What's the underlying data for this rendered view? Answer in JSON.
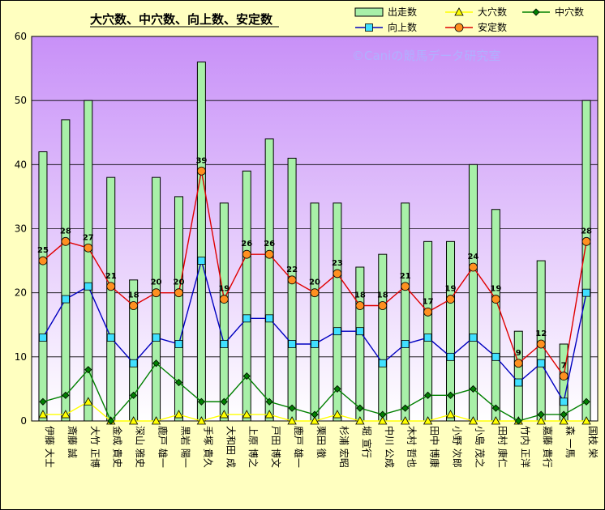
{
  "chart_data": {
    "type": "bar",
    "title": "大穴数、中穴数、向上数、安定数",
    "watermark": "©Caniの競馬データ研究室",
    "ylim": [
      0,
      60
    ],
    "yticks": [
      0,
      10,
      20,
      30,
      40,
      50,
      60
    ],
    "grid": true,
    "legend_position": "top-right",
    "categories": [
      "伊藤 大士",
      "斎藤 誠",
      "大竹 正博",
      "金成 貴史",
      "深山 雅史",
      "鹿戸 雄一",
      "黒岩 陽一",
      "手塚 貴久",
      "大和田 成",
      "上原 博之",
      "戸田 博文",
      "鹿戸 雄一",
      "栗田 徹",
      "杉浦 宏昭",
      "堀 宣行",
      "中川 公成",
      "木村 哲也",
      "田中 博康",
      "小野 次郎",
      "小島 茂之",
      "田村 康仁",
      "竹内 正洋",
      "嘉藤 貴行",
      "森 一馬",
      "国枝 栄"
    ],
    "series": [
      {
        "name": "出走数",
        "kind": "bar",
        "color": "#a8f0a8",
        "values": [
          42,
          47,
          50,
          38,
          22,
          38,
          35,
          56,
          34,
          39,
          44,
          41,
          34,
          34,
          24,
          26,
          34,
          28,
          28,
          40,
          33,
          14,
          25,
          12,
          50
        ]
      },
      {
        "name": "大穴数",
        "kind": "line",
        "color": "#ffff00",
        "values": [
          1,
          1,
          3,
          0,
          0,
          0,
          1,
          0,
          1,
          1,
          1,
          0,
          0,
          1,
          0,
          0,
          0,
          0,
          1,
          0,
          0,
          0,
          0,
          0,
          0
        ]
      },
      {
        "name": "中穴数",
        "kind": "line",
        "color": "#008000",
        "values": [
          3,
          4,
          8,
          0,
          4,
          9,
          6,
          3,
          3,
          7,
          3,
          2,
          1,
          5,
          2,
          1,
          2,
          4,
          4,
          5,
          2,
          0,
          1,
          1,
          3
        ]
      },
      {
        "name": "向上数",
        "kind": "line",
        "color": "#0000c0",
        "values": [
          13,
          19,
          21,
          13,
          9,
          13,
          12,
          25,
          12,
          16,
          16,
          12,
          12,
          14,
          14,
          9,
          12,
          13,
          10,
          13,
          10,
          6,
          9,
          3,
          20
        ]
      },
      {
        "name": "安定数",
        "kind": "line",
        "color": "#e00000",
        "values": [
          25,
          28,
          27,
          21,
          18,
          20,
          20,
          39,
          19,
          26,
          26,
          22,
          20,
          23,
          18,
          18,
          21,
          17,
          19,
          24,
          19,
          9,
          12,
          7,
          28
        ]
      }
    ],
    "data_label_series": "安定数"
  }
}
